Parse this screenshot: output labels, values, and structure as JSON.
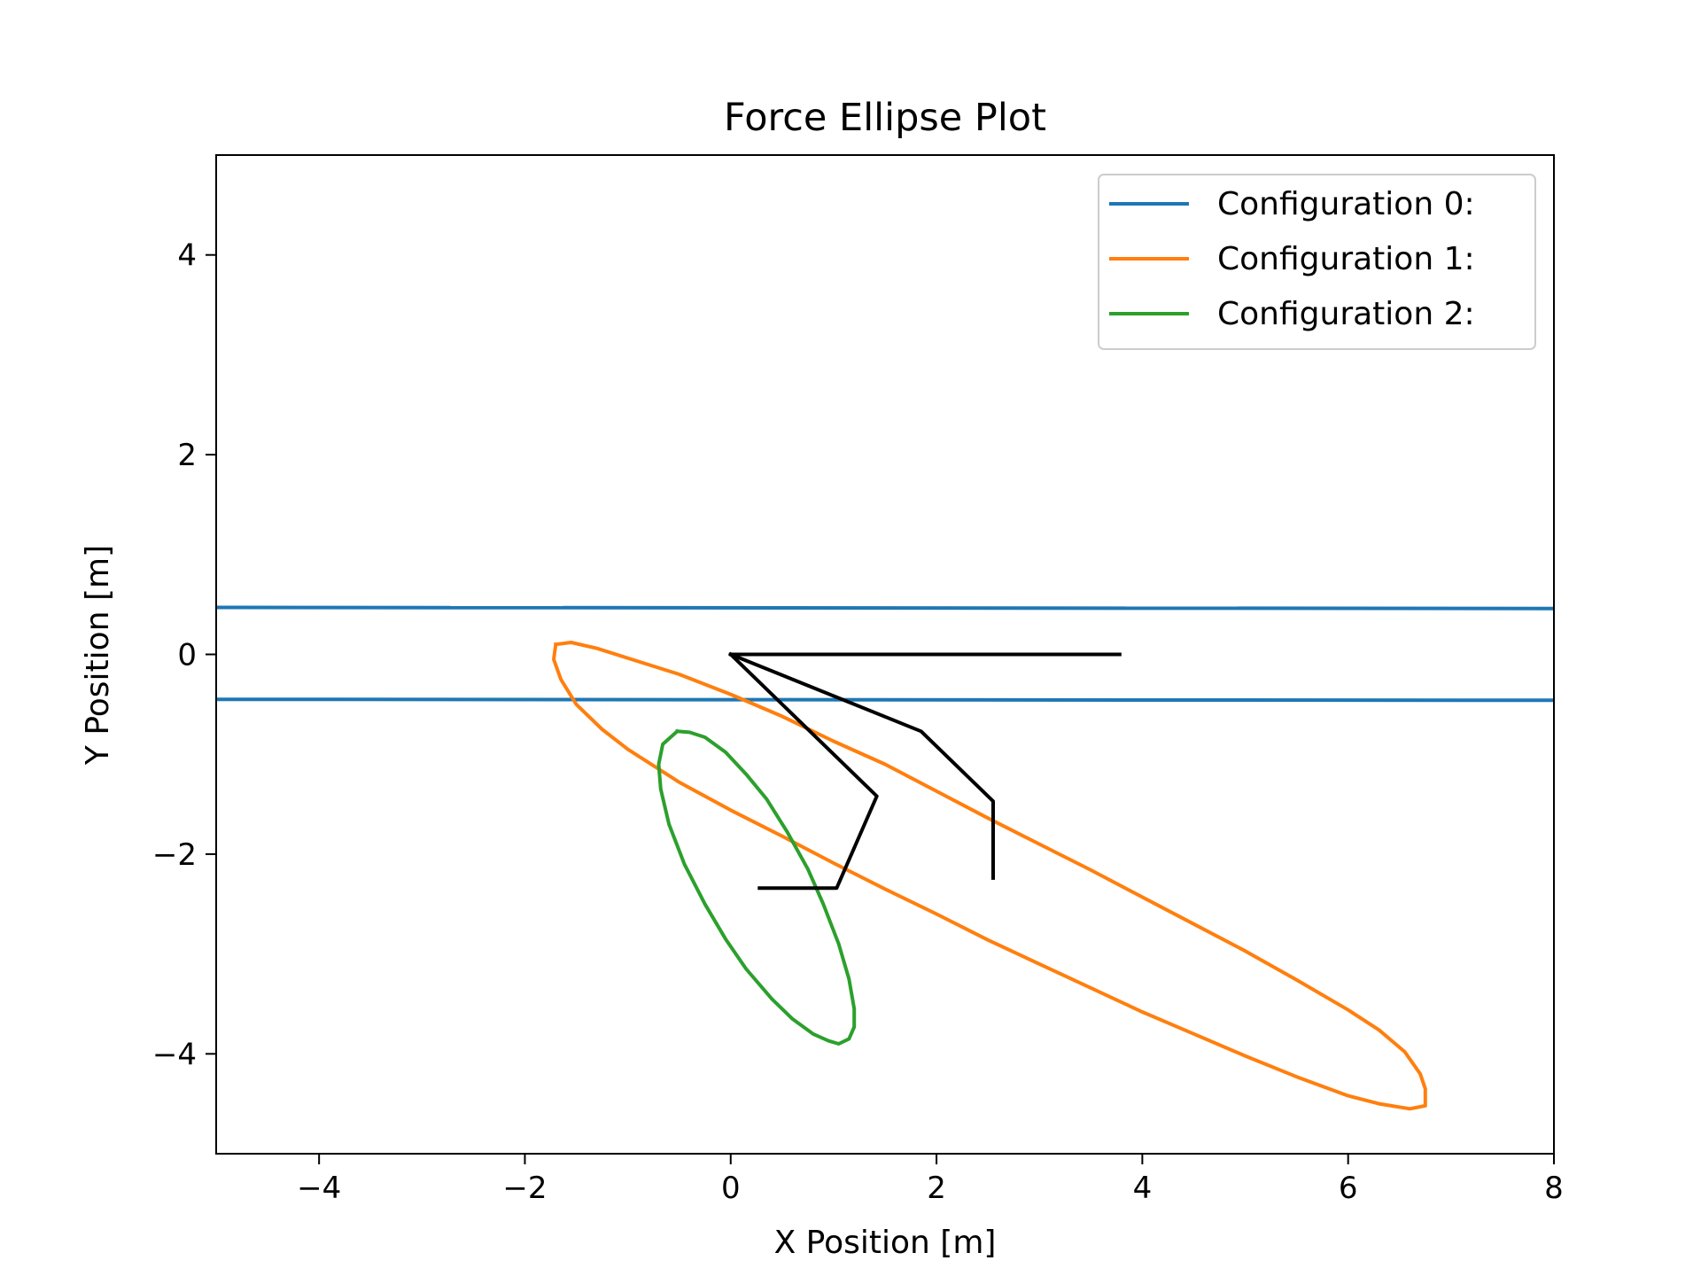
{
  "chart_data": {
    "type": "line",
    "title": "Force Ellipse Plot",
    "xlabel": "X Position [m]",
    "ylabel": "Y Position [m]",
    "xlim": [
      -5,
      8
    ],
    "ylim": [
      -5,
      5
    ],
    "xticks": [
      -4,
      -2,
      0,
      2,
      4,
      6,
      8
    ],
    "yticks": [
      -4,
      -2,
      0,
      2,
      4
    ],
    "grid": false,
    "legend_position": "top-right",
    "series": [
      {
        "name": "Configuration 0:",
        "color": "#1f77b4",
        "segments": [
          [
            [
              -5,
              0.47
            ],
            [
              8,
              0.46
            ]
          ],
          [
            [
              -5,
              -0.45
            ],
            [
              8,
              -0.46
            ]
          ]
        ]
      },
      {
        "name": "Configuration 1:",
        "color": "#ff7f0e",
        "segments": [
          [
            [
              -1.7,
              0.1
            ],
            [
              -1.55,
              0.12
            ],
            [
              -1.3,
              0.06
            ],
            [
              -0.9,
              -0.07
            ],
            [
              -0.5,
              -0.2
            ],
            [
              0,
              -0.4
            ],
            [
              0.5,
              -0.62
            ],
            [
              1,
              -0.87
            ],
            [
              1.5,
              -1.1
            ],
            [
              2,
              -1.37
            ],
            [
              2.5,
              -1.64
            ],
            [
              3,
              -1.9
            ],
            [
              3.5,
              -2.16
            ],
            [
              4,
              -2.43
            ],
            [
              4.5,
              -2.7
            ],
            [
              5,
              -2.97
            ],
            [
              5.5,
              -3.26
            ],
            [
              6,
              -3.56
            ],
            [
              6.3,
              -3.76
            ],
            [
              6.55,
              -3.98
            ],
            [
              6.7,
              -4.2
            ],
            [
              6.75,
              -4.35
            ],
            [
              6.75,
              -4.52
            ],
            [
              6.6,
              -4.55
            ],
            [
              6.3,
              -4.5
            ],
            [
              6,
              -4.42
            ],
            [
              5.5,
              -4.23
            ],
            [
              5,
              -4.02
            ],
            [
              4.5,
              -3.8
            ],
            [
              4,
              -3.58
            ],
            [
              3.5,
              -3.34
            ],
            [
              3,
              -3.1
            ],
            [
              2.5,
              -2.86
            ],
            [
              2,
              -2.6
            ],
            [
              1.5,
              -2.35
            ],
            [
              1,
              -2.09
            ],
            [
              0.5,
              -1.82
            ],
            [
              0,
              -1.56
            ],
            [
              -0.5,
              -1.28
            ],
            [
              -1,
              -0.95
            ],
            [
              -1.25,
              -0.75
            ],
            [
              -1.5,
              -0.5
            ],
            [
              -1.65,
              -0.25
            ],
            [
              -1.72,
              -0.05
            ],
            [
              -1.7,
              0.1
            ]
          ]
        ]
      },
      {
        "name": "Configuration 2:",
        "color": "#2ca02c",
        "segments": [
          [
            [
              -0.52,
              -0.77
            ],
            [
              -0.4,
              -0.78
            ],
            [
              -0.25,
              -0.83
            ],
            [
              -0.05,
              -0.98
            ],
            [
              0.15,
              -1.2
            ],
            [
              0.35,
              -1.45
            ],
            [
              0.55,
              -1.78
            ],
            [
              0.75,
              -2.15
            ],
            [
              0.9,
              -2.5
            ],
            [
              1.05,
              -2.9
            ],
            [
              1.15,
              -3.25
            ],
            [
              1.2,
              -3.55
            ],
            [
              1.2,
              -3.73
            ],
            [
              1.15,
              -3.85
            ],
            [
              1.05,
              -3.9
            ],
            [
              0.95,
              -3.87
            ],
            [
              0.8,
              -3.8
            ],
            [
              0.6,
              -3.65
            ],
            [
              0.4,
              -3.45
            ],
            [
              0.15,
              -3.15
            ],
            [
              -0.05,
              -2.85
            ],
            [
              -0.25,
              -2.5
            ],
            [
              -0.45,
              -2.1
            ],
            [
              -0.6,
              -1.7
            ],
            [
              -0.68,
              -1.35
            ],
            [
              -0.7,
              -1.1
            ],
            [
              -0.66,
              -0.9
            ],
            [
              -0.52,
              -0.77
            ]
          ]
        ]
      },
      {
        "color": "#000000",
        "segments": [
          [
            [
              0,
              0
            ],
            [
              3.78,
              0
            ]
          ],
          [
            [
              0,
              0
            ],
            [
              1.85,
              -0.77
            ],
            [
              2.55,
              -1.47
            ],
            [
              2.55,
              -2.24
            ]
          ],
          [
            [
              0,
              0
            ],
            [
              1.42,
              -1.42
            ],
            [
              1.03,
              -2.34
            ],
            [
              0.28,
              -2.34
            ]
          ]
        ]
      }
    ]
  }
}
